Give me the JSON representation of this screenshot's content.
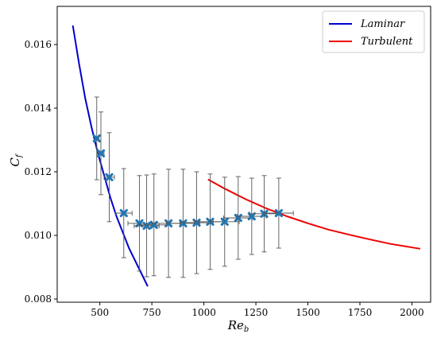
{
  "chart_data": {
    "type": "scatter",
    "xlabel": "Re",
    "xlabel_sub": "b",
    "ylabel": "C",
    "ylabel_sub": "f",
    "xlim": [
      295,
      2090
    ],
    "ylim": [
      0.0079,
      0.0172
    ],
    "x_ticks": [
      500,
      750,
      1000,
      1250,
      1500,
      1750,
      2000
    ],
    "x_tick_labels": [
      "500",
      "750",
      "1000",
      "1250",
      "1500",
      "1750",
      "2000"
    ],
    "y_ticks": [
      0.008,
      0.01,
      0.012,
      0.014,
      0.016
    ],
    "y_tick_labels": [
      "0.008",
      "0.010",
      "0.012",
      "0.014",
      "0.016"
    ],
    "grid": false,
    "legend_position": "top-right",
    "series": [
      {
        "name": "Laminar",
        "kind": "line",
        "color": "#0000cc",
        "x": [
          370,
          400,
          430,
          460,
          490,
          520,
          550,
          580,
          610,
          640,
          670,
          700,
          730
        ],
        "y": [
          0.0166,
          0.0154,
          0.0143,
          0.0134,
          0.0126,
          0.0119,
          0.0112,
          0.0106,
          0.0101,
          0.0096,
          0.0092,
          0.0088,
          0.0084
        ]
      },
      {
        "name": "Turbulent",
        "kind": "line",
        "color": "#ee0000",
        "x": [
          1020,
          1100,
          1200,
          1300,
          1400,
          1500,
          1600,
          1700,
          1800,
          1900,
          2040
        ],
        "y": [
          0.01176,
          0.01147,
          0.01114,
          0.01085,
          0.0106,
          0.01038,
          0.01018,
          0.01002,
          0.00987,
          0.00973,
          0.00958
        ]
      },
      {
        "kind": "errorbar",
        "color": "#1f77b4",
        "errorbar_color": "#555555",
        "points": [
          {
            "x": 485,
            "y": 0.01305,
            "xerr": 10,
            "yerr": 0.0013
          },
          {
            "x": 505,
            "y": 0.01258,
            "xerr": 15,
            "yerr": 0.0013
          },
          {
            "x": 545,
            "y": 0.01183,
            "xerr": 25,
            "yerr": 0.0014
          },
          {
            "x": 615,
            "y": 0.0107,
            "xerr": 40,
            "yerr": 0.0014
          },
          {
            "x": 690,
            "y": 0.01038,
            "xerr": 55,
            "yerr": 0.0015
          },
          {
            "x": 725,
            "y": 0.0103,
            "xerr": 60,
            "yerr": 0.0016
          },
          {
            "x": 760,
            "y": 0.01033,
            "xerr": 70,
            "yerr": 0.0016
          },
          {
            "x": 830,
            "y": 0.01038,
            "xerr": 80,
            "yerr": 0.0017
          },
          {
            "x": 900,
            "y": 0.01038,
            "xerr": 80,
            "yerr": 0.0017
          },
          {
            "x": 965,
            "y": 0.0104,
            "xerr": 80,
            "yerr": 0.0016
          },
          {
            "x": 1030,
            "y": 0.01043,
            "xerr": 75,
            "yerr": 0.0015
          },
          {
            "x": 1100,
            "y": 0.01043,
            "xerr": 70,
            "yerr": 0.0014
          },
          {
            "x": 1165,
            "y": 0.01055,
            "xerr": 70,
            "yerr": 0.0013
          },
          {
            "x": 1230,
            "y": 0.0106,
            "xerr": 70,
            "yerr": 0.0012
          },
          {
            "x": 1290,
            "y": 0.01068,
            "xerr": 70,
            "yerr": 0.0012
          },
          {
            "x": 1360,
            "y": 0.0107,
            "xerr": 70,
            "yerr": 0.0011
          }
        ]
      }
    ]
  }
}
